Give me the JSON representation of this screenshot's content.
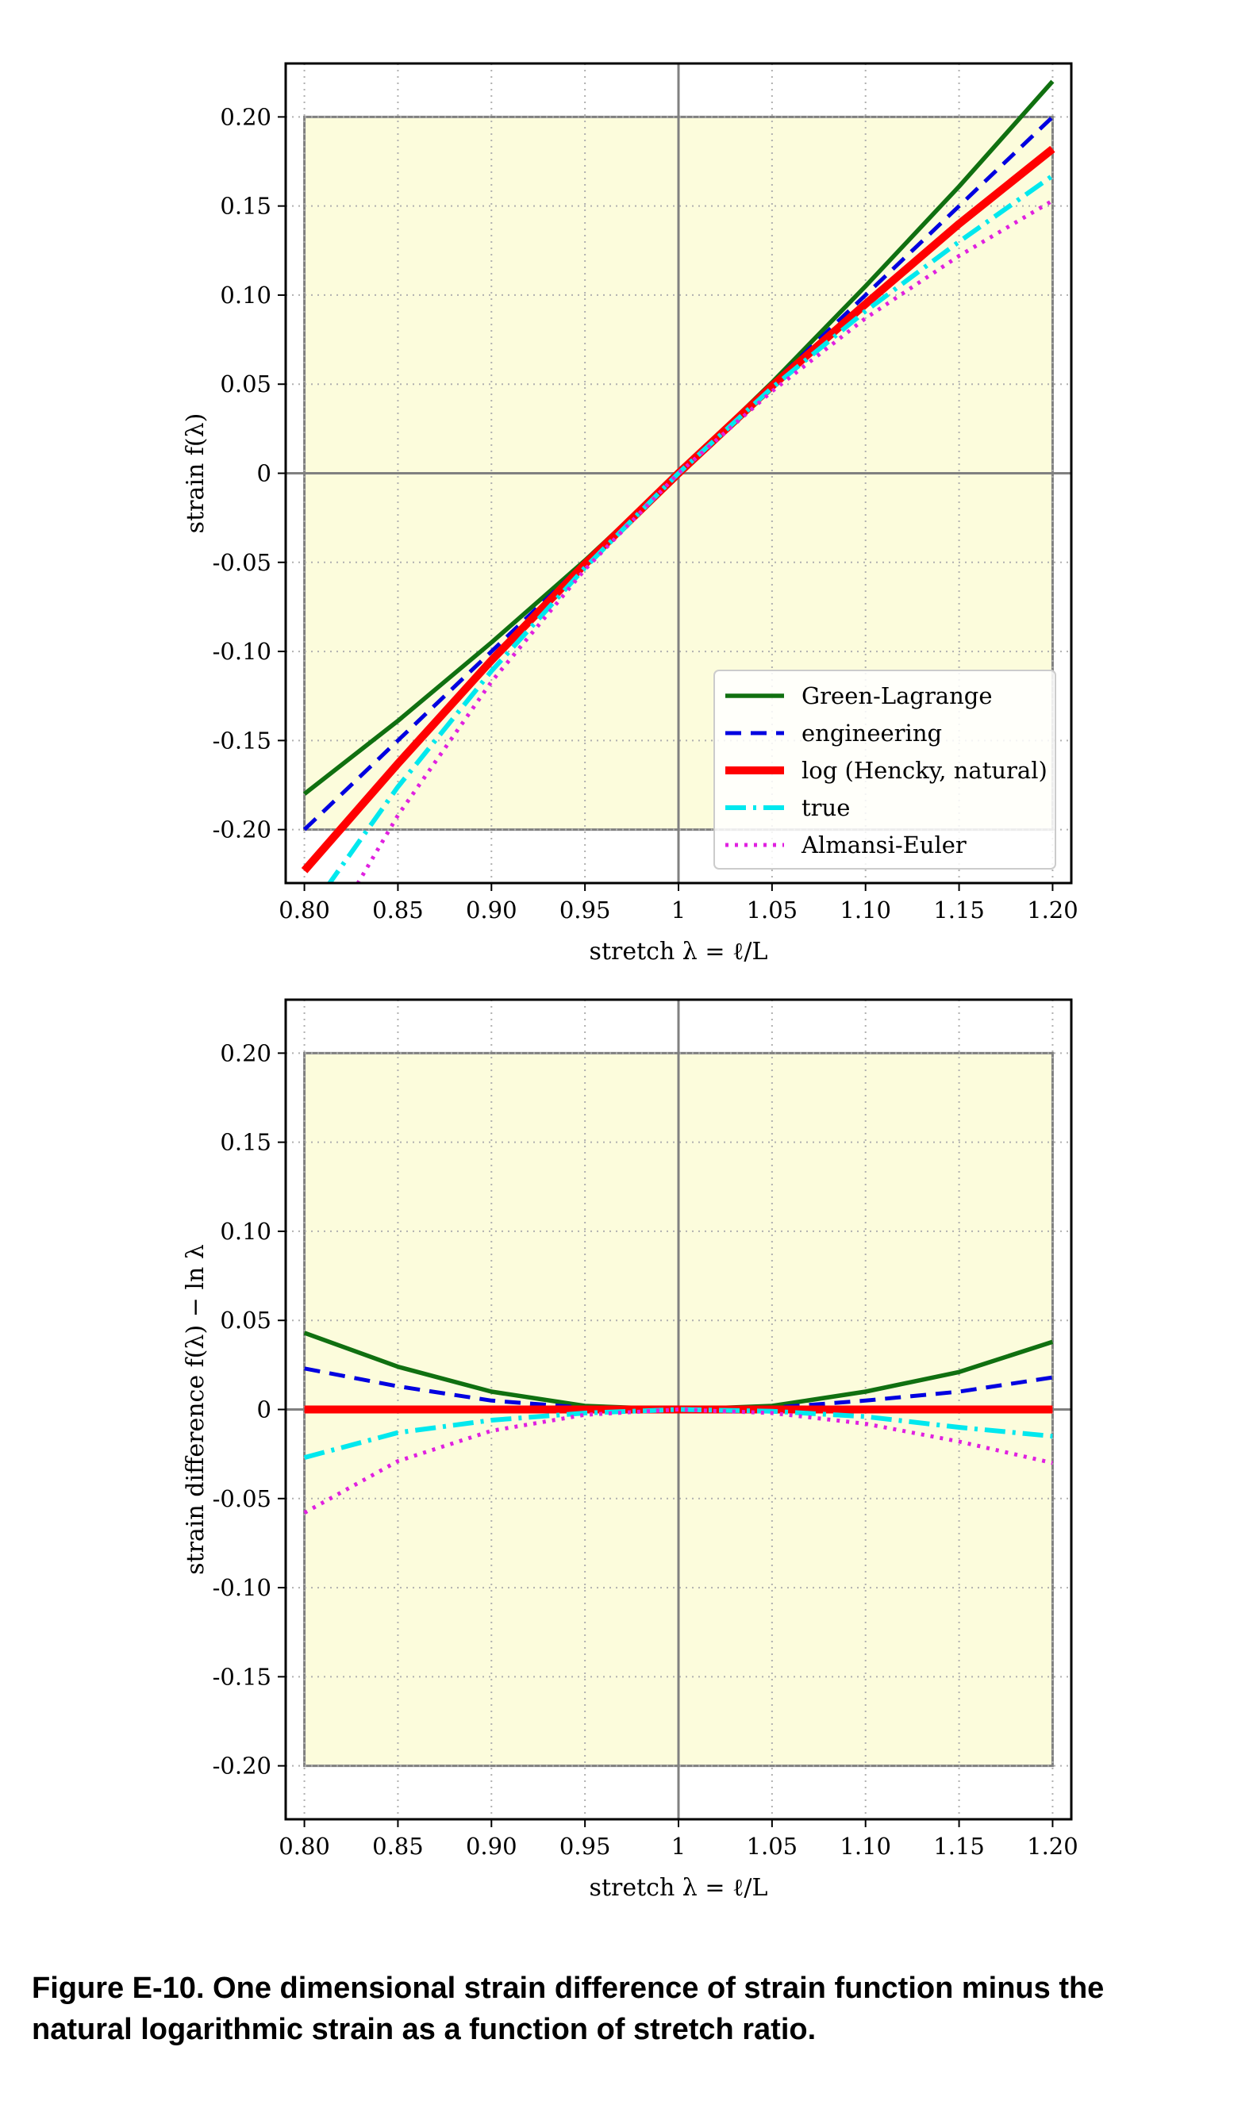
{
  "caption": {
    "line1": "Figure E-10. One dimensional strain difference of strain function minus the",
    "line2": "natural logarithmic strain as a function of stretch ratio."
  },
  "chart_data": [
    {
      "type": "line",
      "xlabel": "stretch λ = ℓ/L",
      "ylabel": "strain f(λ)",
      "xlim": [
        0.79,
        1.21
      ],
      "ylim": [
        -0.23,
        0.23
      ],
      "xticks": [
        0.8,
        0.85,
        0.9,
        0.95,
        1.0,
        1.05,
        1.1,
        1.15,
        1.2
      ],
      "xtick_labels": [
        "0.80",
        "0.85",
        "0.90",
        "0.95",
        "1",
        "1.05",
        "1.10",
        "1.15",
        "1.20"
      ],
      "yticks": [
        0.2,
        0.15,
        0.1,
        0.05,
        0,
        -0.05,
        -0.1,
        -0.15,
        -0.2
      ],
      "ytick_labels": [
        "0.20",
        "0.15",
        "0.10",
        "0.05",
        "0",
        "-0.05",
        "-0.10",
        "-0.15",
        "-0.20"
      ],
      "grid": true,
      "shaded_region": {
        "x": [
          0.8,
          1.2
        ],
        "y": [
          -0.2,
          0.2
        ],
        "color": "#fcfcdc"
      },
      "legend_position": "lower-right",
      "x": [
        0.8,
        0.85,
        0.9,
        0.95,
        1.0,
        1.05,
        1.1,
        1.15,
        1.2
      ],
      "series": [
        {
          "name": "Green-Lagrange",
          "color": "#107010",
          "style": "solid",
          "values": [
            -0.18,
            -0.139,
            -0.095,
            -0.049,
            0.0,
            0.051,
            0.105,
            0.161,
            0.22
          ]
        },
        {
          "name": "engineering",
          "color": "#0000e0",
          "style": "dashed",
          "values": [
            -0.2,
            -0.15,
            -0.1,
            -0.05,
            0.0,
            0.05,
            0.1,
            0.15,
            0.2
          ]
        },
        {
          "name": "log (Hencky, natural)",
          "color": "#ff0000",
          "style": "thick",
          "values": [
            -0.223,
            -0.163,
            -0.105,
            -0.051,
            0.0,
            0.049,
            0.095,
            0.14,
            0.182
          ]
        },
        {
          "name": "true",
          "color": "#00e8ee",
          "style": "dashdot",
          "values": [
            -0.25,
            -0.176,
            -0.111,
            -0.053,
            0.0,
            0.048,
            0.091,
            0.13,
            0.167
          ]
        },
        {
          "name": "Almansi-Euler",
          "color": "#e020e0",
          "style": "dotted",
          "values": [
            -0.281,
            -0.192,
            -0.117,
            -0.054,
            0.0,
            0.046,
            0.087,
            0.122,
            0.153
          ]
        }
      ]
    },
    {
      "type": "line",
      "xlabel": "stretch λ = ℓ/L",
      "ylabel": "strain difference f(λ) − ln λ",
      "xlim": [
        0.79,
        1.21
      ],
      "ylim": [
        -0.23,
        0.23
      ],
      "xticks": [
        0.8,
        0.85,
        0.9,
        0.95,
        1.0,
        1.05,
        1.1,
        1.15,
        1.2
      ],
      "xtick_labels": [
        "0.80",
        "0.85",
        "0.90",
        "0.95",
        "1",
        "1.05",
        "1.10",
        "1.15",
        "1.20"
      ],
      "yticks": [
        0.2,
        0.15,
        0.1,
        0.05,
        0,
        -0.05,
        -0.1,
        -0.15,
        -0.2
      ],
      "ytick_labels": [
        "0.20",
        "0.15",
        "0.10",
        "0.05",
        "0",
        "-0.05",
        "-0.10",
        "-0.15",
        "-0.20"
      ],
      "grid": true,
      "shaded_region": {
        "x": [
          0.8,
          1.2
        ],
        "y": [
          -0.2,
          0.2
        ],
        "color": "#fcfcdc"
      },
      "x": [
        0.8,
        0.85,
        0.9,
        0.95,
        1.0,
        1.05,
        1.1,
        1.15,
        1.2
      ],
      "series": [
        {
          "color": "#107010",
          "style": "solid",
          "values": [
            0.043,
            0.024,
            0.01,
            0.002,
            0.0,
            0.002,
            0.01,
            0.021,
            0.038
          ]
        },
        {
          "color": "#0000e0",
          "style": "dashed",
          "values": [
            0.023,
            0.013,
            0.005,
            0.001,
            0.0,
            0.001,
            0.005,
            0.01,
            0.018
          ]
        },
        {
          "color": "#ff0000",
          "style": "thick",
          "values": [
            0.0,
            0.0,
            0.0,
            0.0,
            0.0,
            0.0,
            0.0,
            0.0,
            0.0
          ]
        },
        {
          "color": "#00e8ee",
          "style": "dashdot",
          "values": [
            -0.027,
            -0.013,
            -0.006,
            -0.002,
            0.0,
            -0.001,
            -0.004,
            -0.01,
            -0.015
          ]
        },
        {
          "color": "#e020e0",
          "style": "dotted",
          "values": [
            -0.058,
            -0.029,
            -0.012,
            -0.003,
            0.0,
            -0.002,
            -0.008,
            -0.018,
            -0.03
          ]
        }
      ]
    }
  ]
}
